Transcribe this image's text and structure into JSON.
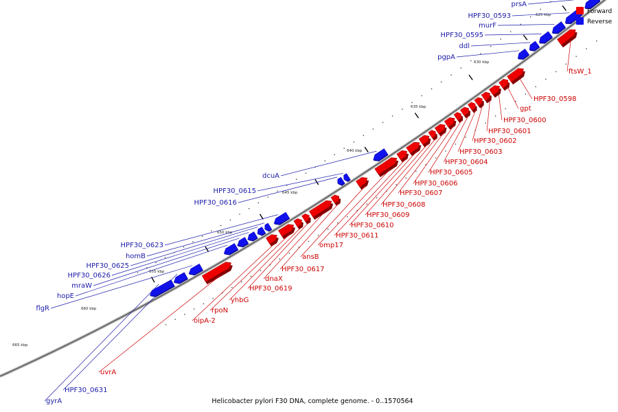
{
  "caption": "Helicobacter pylori F30 DNA, complete genome. - 0..1570564",
  "legend": [
    {
      "label": "Forward",
      "color": "#ee0000"
    },
    {
      "label": "Reverse",
      "color": "#1111ee"
    }
  ],
  "colors": {
    "forward": "#ee0000",
    "reverse": "#1111ee",
    "backbone": "#9a9a9a",
    "forward_label": "#cc0000",
    "reverse_label": "#1a1aaa"
  },
  "scale": {
    "unit": "kbp",
    "ticks": [
      "625 kbp",
      "630 kbp",
      "635 kbp",
      "640 kbp",
      "645 kbp",
      "650 kbp",
      "655 kbp",
      "660 kbp",
      "665 kbp"
    ]
  },
  "genes": [
    {
      "name": "prsA",
      "strand": "reverse"
    },
    {
      "name": "HPF30_0593",
      "strand": "reverse"
    },
    {
      "name": "murF",
      "strand": "reverse"
    },
    {
      "name": "HPF30_0595",
      "strand": "reverse"
    },
    {
      "name": "ddl",
      "strand": "reverse"
    },
    {
      "name": "pgpA",
      "strand": "reverse"
    },
    {
      "name": "ftsW_1",
      "strand": "forward"
    },
    {
      "name": "HPF30_0598",
      "strand": "forward"
    },
    {
      "name": "gpt",
      "strand": "forward"
    },
    {
      "name": "HPF30_0600",
      "strand": "forward"
    },
    {
      "name": "HPF30_0601",
      "strand": "forward"
    },
    {
      "name": "HPF30_0602",
      "strand": "forward"
    },
    {
      "name": "HPF30_0603",
      "strand": "forward"
    },
    {
      "name": "HPF30_0604",
      "strand": "forward"
    },
    {
      "name": "HPF30_0605",
      "strand": "forward"
    },
    {
      "name": "HPF30_0606",
      "strand": "forward"
    },
    {
      "name": "HPF30_0607",
      "strand": "forward"
    },
    {
      "name": "HPF30_0608",
      "strand": "forward"
    },
    {
      "name": "HPF30_0609",
      "strand": "forward"
    },
    {
      "name": "HPF30_0610",
      "strand": "forward"
    },
    {
      "name": "HPF30_0611",
      "strand": "forward"
    },
    {
      "name": "omp17",
      "strand": "forward"
    },
    {
      "name": "dcuA",
      "strand": "reverse"
    },
    {
      "name": "ansB",
      "strand": "forward"
    },
    {
      "name": "HPF30_0615",
      "strand": "reverse"
    },
    {
      "name": "HPF30_0616",
      "strand": "reverse"
    },
    {
      "name": "HPF30_0617",
      "strand": "forward"
    },
    {
      "name": "dnaX",
      "strand": "forward"
    },
    {
      "name": "HPF30_0619",
      "strand": "forward"
    },
    {
      "name": "yhbG",
      "strand": "forward"
    },
    {
      "name": "rpoN",
      "strand": "forward"
    },
    {
      "name": "oipA-2",
      "strand": "forward"
    },
    {
      "name": "HPF30_0623",
      "strand": "reverse"
    },
    {
      "name": "homB",
      "strand": "reverse"
    },
    {
      "name": "HPF30_0625",
      "strand": "reverse"
    },
    {
      "name": "HPF30_0626",
      "strand": "reverse"
    },
    {
      "name": "mraW",
      "strand": "reverse"
    },
    {
      "name": "hopE",
      "strand": "reverse"
    },
    {
      "name": "flgR",
      "strand": "reverse"
    },
    {
      "name": "uvrA",
      "strand": "forward"
    },
    {
      "name": "HPF30_0631",
      "strand": "reverse"
    },
    {
      "name": "gyrA",
      "strand": "reverse"
    }
  ]
}
